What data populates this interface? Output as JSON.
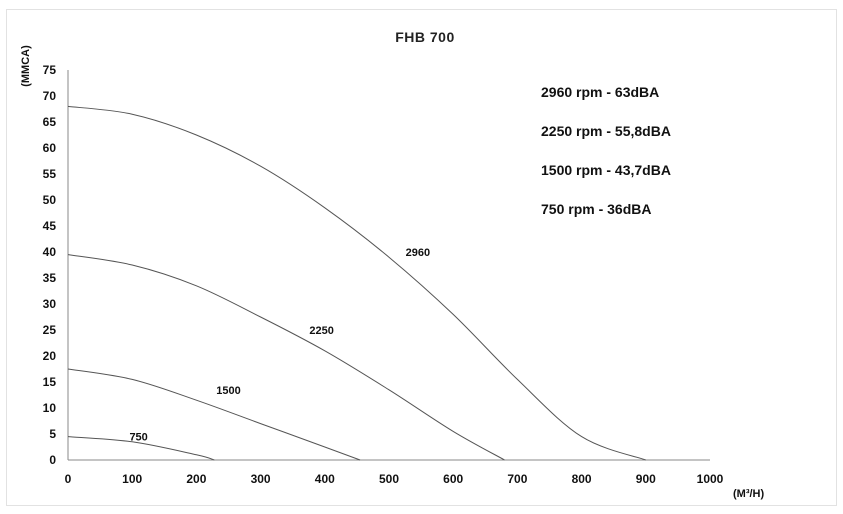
{
  "chart_data": {
    "type": "line",
    "title": "FHB 700",
    "xlabel": "(M³/H)",
    "ylabel": "(MMCA)",
    "xlim": [
      0,
      1000
    ],
    "ylim": [
      0,
      75
    ],
    "x_ticks": [
      "0",
      "100",
      "200",
      "300",
      "400",
      "500",
      "600",
      "700",
      "800",
      "900",
      "1000"
    ],
    "y_ticks": [
      "0",
      "5",
      "10",
      "15",
      "20",
      "25",
      "30",
      "35",
      "40",
      "45",
      "50",
      "55",
      "60",
      "65",
      "70",
      "75"
    ],
    "grid": false,
    "legend_position": "top-right",
    "legend": [
      "2960 rpm - 63dBA",
      "2250 rpm - 55,8dBA",
      "1500 rpm - 43,7dBA",
      "750 rpm - 36dBA"
    ],
    "series": [
      {
        "name": "2960",
        "x": [
          0,
          100,
          200,
          300,
          400,
          500,
          600,
          700,
          800,
          900
        ],
        "y": [
          68,
          66.5,
          62.5,
          56.5,
          48.5,
          39,
          28,
          15.5,
          4.5,
          0
        ]
      },
      {
        "name": "2250",
        "x": [
          0,
          100,
          200,
          300,
          400,
          500,
          600,
          680
        ],
        "y": [
          39.5,
          37.5,
          33.5,
          27.5,
          21,
          13.5,
          5.5,
          0
        ]
      },
      {
        "name": "1500",
        "x": [
          0,
          100,
          200,
          300,
          400,
          455
        ],
        "y": [
          17.5,
          15.5,
          11.5,
          7,
          2.5,
          0
        ]
      },
      {
        "name": "750",
        "x": [
          0,
          100,
          200,
          228
        ],
        "y": [
          4.5,
          3.5,
          1,
          0
        ]
      }
    ],
    "curve_labels": [
      {
        "text": "2960",
        "x": 545,
        "y": 40
      },
      {
        "text": "2250",
        "x": 395,
        "y": 25
      },
      {
        "text": "1500",
        "x": 250,
        "y": 13.5
      },
      {
        "text": "750",
        "x": 110,
        "y": 4.5
      }
    ]
  }
}
